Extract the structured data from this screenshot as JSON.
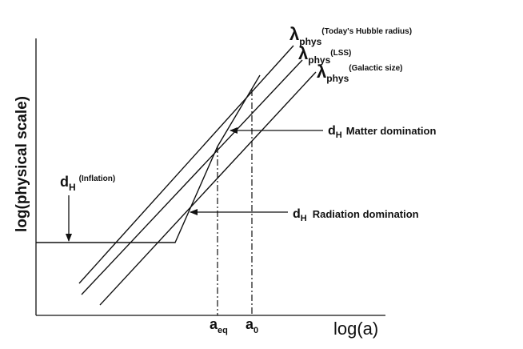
{
  "axes": {
    "y_label": "log(physical scale)",
    "x_label": "log(a)"
  },
  "x_markers": {
    "a_eq": {
      "base": "a",
      "sub": "eq"
    },
    "a_0": {
      "base": "a",
      "sub": "0"
    }
  },
  "curves": {
    "lambda_hubble": {
      "symbol": "λ",
      "sub": "phys",
      "sup": "(Today's Hubble radius)"
    },
    "lambda_lss": {
      "symbol": "λ",
      "sub": "phys",
      "sup": "(LSS)"
    },
    "lambda_galactic": {
      "symbol": "λ",
      "sub": "phys",
      "sup": "(Galactic size)"
    }
  },
  "annotations": {
    "inflation": {
      "base": "d",
      "sub": "H",
      "sup": "(Inflation)"
    },
    "matter": {
      "base": "d",
      "sub": "H",
      "text": "Matter domination"
    },
    "radiation": {
      "base": "d",
      "sub": "H",
      "text": "Radiation domination"
    }
  }
}
